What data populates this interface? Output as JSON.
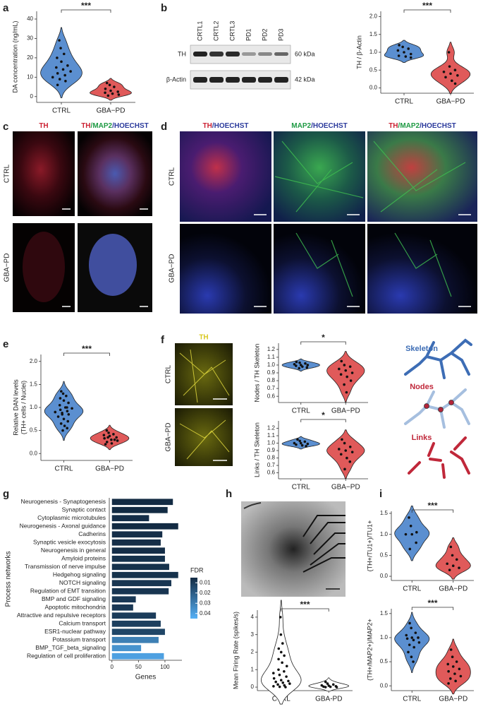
{
  "panel_labels": [
    "a",
    "b",
    "c",
    "d",
    "e",
    "f",
    "g",
    "h",
    "i"
  ],
  "blot": {
    "lanes": [
      "CRTL1",
      "CRTL2",
      "CRTL3",
      "PD1",
      "PD2",
      "PD3"
    ],
    "rows": [
      "TH",
      "β-Actin"
    ],
    "sizes": [
      "60 kDa",
      "42 kDa"
    ]
  },
  "panel_c": {
    "headers": [
      [
        {
          "text": "TH",
          "color": "#cc2233"
        }
      ],
      [
        {
          "text": "TH",
          "color": "#cc2233"
        },
        {
          "text": "/MAP2",
          "color": "#1f9a44"
        },
        {
          "text": "/HOECHST",
          "color": "#2b3a9c"
        }
      ]
    ],
    "rows": [
      "CTRL",
      "GBA−PD"
    ]
  },
  "panel_d": {
    "headers": [
      [
        {
          "text": "TH",
          "color": "#cc2233"
        },
        {
          "text": "/HOECHST",
          "color": "#2b3a9c"
        }
      ],
      [
        {
          "text": "MAP2",
          "color": "#1f9a44"
        },
        {
          "text": "/HOECHST",
          "color": "#2b3a9c"
        }
      ],
      [
        {
          "text": "TH",
          "color": "#cc2233"
        },
        {
          "text": "/MAP2",
          "color": "#1f9a44"
        },
        {
          "text": "/HOECHST",
          "color": "#2b3a9c"
        }
      ]
    ],
    "rows": [
      "CTRL",
      "GBA−PD"
    ]
  },
  "panel_f": {
    "header": "TH",
    "rows": [
      "CTRL",
      "GBA−PD"
    ],
    "diagram": [
      "Skeleton",
      "Nodes",
      "Links"
    ]
  },
  "chart_data": [
    {
      "type": "violin",
      "ylabel": [
        "DA concentration (ng/mL)"
      ],
      "categories": [
        "CTRL",
        "GBA−PD"
      ],
      "significance": "***",
      "series": [
        {
          "color": "#5b8fd0",
          "values": [
            29,
            25,
            22,
            20,
            18,
            16,
            15,
            14,
            13,
            12,
            11,
            10,
            9,
            8,
            6
          ]
        },
        {
          "color": "#e05a5a",
          "values": [
            7,
            6,
            5,
            4,
            3,
            2.5,
            2,
            1.5,
            1,
            0.5
          ]
        }
      ],
      "ylim": [
        -3,
        44
      ],
      "yticks": [
        0,
        10,
        20,
        30,
        40
      ]
    },
    {
      "type": "violin",
      "ylabel": [
        "TH / β-Actin"
      ],
      "categories": [
        "CTRL",
        "GBA−PD"
      ],
      "significance": "***",
      "series": [
        {
          "color": "#5b8fd0",
          "values": [
            1.2,
            1.15,
            1.1,
            1.05,
            1.0,
            0.95,
            0.9,
            0.88,
            0.85
          ]
        },
        {
          "color": "#e05a5a",
          "values": [
            1.0,
            0.6,
            0.5,
            0.45,
            0.4,
            0.35,
            0.3,
            0.2,
            0.12
          ]
        }
      ],
      "ylim": [
        -0.15,
        2.15
      ],
      "yticks": [
        {
          "value": 0,
          "label": "0.0"
        },
        {
          "value": 0.5,
          "label": "0.5"
        },
        {
          "value": 1,
          "label": "1.0"
        },
        {
          "value": 1.5,
          "label": "1.5"
        },
        {
          "value": 2,
          "label": "2.0"
        }
      ]
    },
    {
      "type": "violin",
      "ylabel": [
        "Relative DAN levels",
        "(TH+ cells / Nuclei)"
      ],
      "categories": [
        "CTRL",
        "GBA−PD"
      ],
      "significance": "***",
      "series": [
        {
          "color": "#5b8fd0",
          "values": [
            1.35,
            1.3,
            1.25,
            1.2,
            1.15,
            1.1,
            1.05,
            1.0,
            0.98,
            0.95,
            0.92,
            0.9,
            0.88,
            0.85,
            0.8,
            0.75,
            0.7,
            0.65,
            0.6,
            0.55,
            0.5,
            1.0,
            0.9,
            0.85
          ]
        },
        {
          "color": "#e05a5a",
          "values": [
            0.5,
            0.45,
            0.42,
            0.4,
            0.38,
            0.35,
            0.33,
            0.3,
            0.28,
            0.25,
            0.22,
            0.2,
            0.35,
            0.3
          ]
        }
      ],
      "ylim": [
        -0.15,
        2.15
      ],
      "yticks": [
        {
          "value": 0,
          "label": "0.0"
        },
        {
          "value": 0.5,
          "label": "0.5"
        },
        {
          "value": 1,
          "label": "1.0"
        },
        {
          "value": 1.5,
          "label": "1.5"
        },
        {
          "value": 2,
          "label": "2.0"
        }
      ]
    },
    {
      "type": "violin",
      "ylabel": [
        "Nodes / TH Skeleton"
      ],
      "categories": [
        "CTRL",
        "GBA−PD"
      ],
      "significance": "*",
      "series": [
        {
          "color": "#5b8fd0",
          "values": [
            1.04,
            1.03,
            1.02,
            1.01,
            1.0,
            1.0,
            0.99,
            0.98,
            0.97,
            0.96
          ]
        },
        {
          "color": "#e05a5a",
          "values": [
            1.05,
            1.0,
            0.98,
            0.95,
            0.93,
            0.9,
            0.88,
            0.85,
            0.8,
            0.75,
            0.65
          ]
        }
      ],
      "ylim": [
        0.52,
        1.28
      ],
      "yticks": [
        {
          "value": 0.6,
          "label": "0.6"
        },
        {
          "value": 0.7,
          "label": "0.7"
        },
        {
          "value": 0.8,
          "label": "0.8"
        },
        {
          "value": 0.9,
          "label": "0.9"
        },
        {
          "value": 1,
          "label": "1.0"
        },
        {
          "value": 1.1,
          "label": "1.1"
        },
        {
          "value": 1.2,
          "label": "1.2"
        }
      ]
    },
    {
      "type": "violin",
      "ylabel": [
        "Links / TH Skeleton"
      ],
      "categories": [
        "CTRL",
        "GBA−PD"
      ],
      "significance": "*",
      "series": [
        {
          "color": "#5b8fd0",
          "values": [
            1.05,
            1.03,
            1.02,
            1.0,
            1.0,
            0.99,
            0.98,
            0.97,
            0.96
          ]
        },
        {
          "color": "#e05a5a",
          "values": [
            1.05,
            1.0,
            0.95,
            0.92,
            0.9,
            0.88,
            0.85,
            0.8,
            0.75,
            0.65
          ]
        }
      ],
      "ylim": [
        0.52,
        1.3
      ],
      "yticks": [
        {
          "value": 0.6,
          "label": "0.6"
        },
        {
          "value": 0.7,
          "label": "0.7"
        },
        {
          "value": 0.8,
          "label": "0.8"
        },
        {
          "value": 0.9,
          "label": "0.9"
        },
        {
          "value": 1,
          "label": "1.0"
        },
        {
          "value": 1.1,
          "label": "1.1"
        },
        {
          "value": 1.2,
          "label": "1.2"
        }
      ]
    },
    {
      "type": "violin",
      "ylabel": [
        "Mean Firing Rate (spikes/s)"
      ],
      "categories": [
        "CTRL",
        "GBA-PD"
      ],
      "significance": "***",
      "series": [
        {
          "color": "#ffffff",
          "values": [
            4,
            3,
            2.5,
            2.2,
            2,
            1.8,
            1.6,
            1.4,
            1.2,
            1,
            0.9,
            0.8,
            0.7,
            0.6,
            0.5,
            0.4,
            0.35,
            0.3,
            0.25,
            0.2,
            0.15,
            0.1,
            0.05,
            0.02,
            0
          ]
        },
        {
          "color": "#ffffff",
          "values": [
            0.3,
            0.2,
            0.15,
            0.1,
            0.08,
            0.05,
            0.03,
            0.02,
            0,
            0
          ]
        }
      ],
      "ylim": [
        -0.2,
        4.4
      ],
      "yticks": [
        0,
        1,
        2,
        3,
        4
      ]
    },
    {
      "type": "violin",
      "ylabel": [
        "(TH+/TU1+)/TU1+"
      ],
      "categories": [
        "CTRL",
        "GBA−PD"
      ],
      "significance": "***",
      "series": [
        {
          "color": "#5b8fd0",
          "values": [
            1.4,
            1.2,
            1.05,
            1.0,
            1.0,
            0.8,
            0.65
          ]
        },
        {
          "color": "#e05a5a",
          "values": [
            0.7,
            0.5,
            0.4,
            0.3,
            0.25,
            0.2,
            0.15
          ]
        }
      ],
      "ylim": [
        -0.1,
        1.55
      ],
      "yticks": [
        {
          "value": 0,
          "label": "0.0"
        },
        {
          "value": 0.5,
          "label": "0.5"
        },
        {
          "value": 1,
          "label": "1.0"
        },
        {
          "value": 1.5,
          "label": "1.5"
        }
      ]
    },
    {
      "type": "violin",
      "ylabel": [
        "(TH+/MAP2+)/MAP2+"
      ],
      "categories": [
        "CTRL",
        "GBA−PD"
      ],
      "significance": "***",
      "series": [
        {
          "color": "#5b8fd0",
          "values": [
            1.3,
            1.2,
            1.1,
            1.05,
            1.0,
            1.0,
            0.98,
            0.95,
            0.9,
            0.85,
            0.8,
            0.7,
            0.6,
            0.5
          ]
        },
        {
          "color": "#e05a5a",
          "values": [
            0.75,
            0.6,
            0.5,
            0.45,
            0.4,
            0.35,
            0.3,
            0.25,
            0.2,
            0.15,
            0.1,
            0.05
          ]
        }
      ],
      "ylim": [
        -0.1,
        1.6
      ],
      "yticks": [
        {
          "value": 0,
          "label": "0.0"
        },
        {
          "value": 0.5,
          "label": "0.5"
        },
        {
          "value": 1,
          "label": "1.0"
        },
        {
          "value": 1.5,
          "label": "1.5"
        }
      ]
    },
    {
      "type": "bar",
      "ylabel": "Process networks",
      "xlabel": "Genes",
      "categories": [
        "Neurogenesis - Synaptogenesis",
        "Synaptic contact",
        "Cytoplasmic microtubules",
        "Neurogenesis - Axonal guidance",
        "Cadherins",
        "Synaptic vesicle exocytosis",
        "Neurogenesis in general",
        "Amyloid proteins",
        "Transmission of nerve impulse",
        "Hedgehog signaling",
        "NOTCH signaling",
        "Regulation of EMT transition",
        "BMP and GDF signaling",
        "Apoptotic mitochondria",
        "Attractive and repulsive receptors",
        "Calcium transport",
        "ESR1-nuclear pathway",
        "Potassium transport",
        "BMP_TGF_beta_signaling",
        "Regulation of cell proliferation"
      ],
      "values": [
        115,
        105,
        70,
        125,
        95,
        92,
        100,
        100,
        108,
        125,
        112,
        107,
        45,
        40,
        83,
        92,
        100,
        88,
        55,
        98
      ],
      "fdr": [
        0.005,
        0.005,
        0.006,
        0.005,
        0.006,
        0.006,
        0.006,
        0.007,
        0.007,
        0.007,
        0.008,
        0.008,
        0.009,
        0.009,
        0.01,
        0.011,
        0.013,
        0.03,
        0.036,
        0.04
      ],
      "xlim": [
        -5,
        132
      ],
      "xticks": [
        0,
        50,
        100
      ],
      "legend": {
        "title": "FDR",
        "lim": [
          0.005,
          0.045
        ],
        "ticks": [
          0.01,
          0.02,
          0.03,
          0.04
        ],
        "colors": [
          "#132b43",
          "#56b1f7"
        ]
      }
    }
  ]
}
